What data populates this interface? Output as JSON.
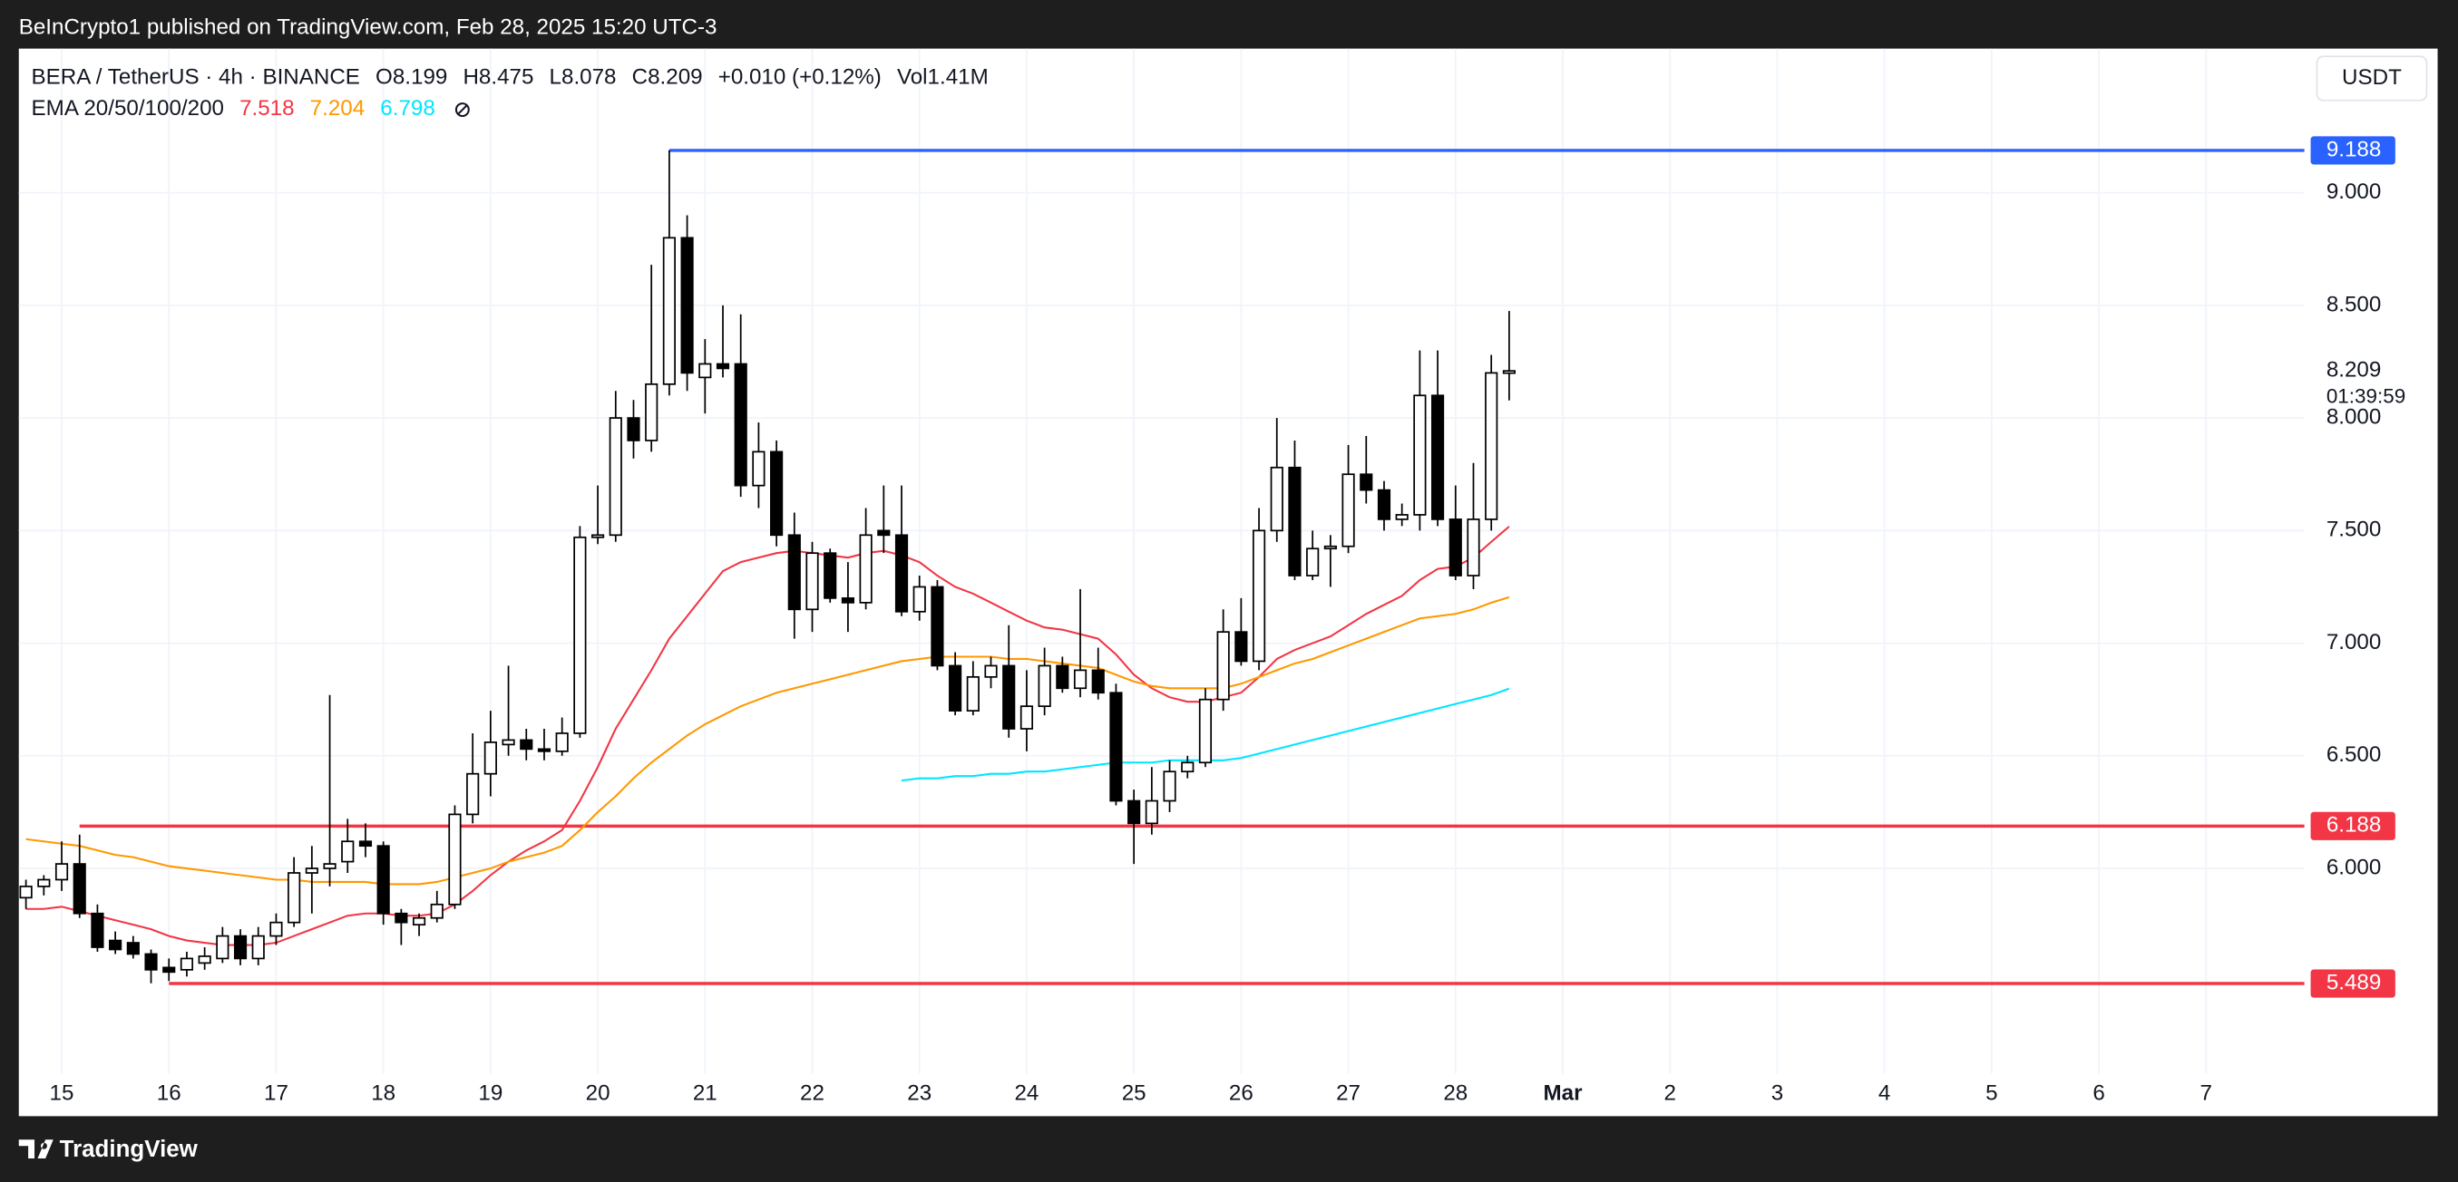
{
  "header": {
    "publisher": "BeInCrypto1 published on TradingView.com, Feb 28, 2025 15:20 UTC-3"
  },
  "footer": {
    "brand": "TradingView"
  },
  "chart_data": {
    "type": "candlestick",
    "symbol": "BERA / TetherUS · 4h · BINANCE",
    "ohlc_prefixes": [
      "O",
      "H",
      "L",
      "C"
    ],
    "change": "+0.010 (+0.12%)",
    "volume": "Vol1.41M",
    "indicator": "EMA 20/50/100/200",
    "currency": "USDT",
    "countdown": "01:39:59",
    "up_color": "#ffffff",
    "down_color": "#000000",
    "grid": true,
    "open": [
      5.87,
      5.92,
      5.95,
      6.02,
      5.8,
      5.68,
      5.67,
      5.62,
      5.56,
      5.55,
      5.58,
      5.6,
      5.7,
      5.6,
      5.7,
      5.76,
      5.98,
      6.0,
      6.03,
      6.12,
      6.1,
      5.8,
      5.75,
      5.78,
      5.84,
      6.24,
      6.42,
      6.55,
      6.57,
      6.53,
      6.52,
      6.6,
      7.47,
      7.48,
      8.0,
      7.9,
      8.15,
      8.8,
      8.18,
      8.24,
      8.24,
      7.7,
      7.85,
      7.48,
      7.15,
      7.4,
      7.2,
      7.18,
      7.5,
      7.48,
      7.14,
      7.25,
      6.9,
      6.7,
      6.85,
      6.9,
      6.62,
      6.72,
      6.9,
      6.8,
      6.88,
      6.78,
      6.3,
      6.2,
      6.3,
      6.43,
      6.47,
      6.75,
      7.05,
      6.92,
      7.5,
      7.78,
      7.3,
      7.42,
      7.43,
      7.75,
      7.68,
      7.55,
      7.57,
      8.1,
      7.55,
      7.3,
      7.55,
      8.199
    ],
    "high": [
      5.95,
      5.97,
      6.12,
      6.15,
      5.84,
      5.72,
      5.7,
      5.64,
      5.6,
      5.63,
      5.65,
      5.74,
      5.73,
      5.74,
      5.8,
      6.05,
      6.1,
      6.77,
      6.22,
      6.2,
      6.12,
      5.82,
      5.8,
      5.9,
      6.28,
      6.6,
      6.7,
      6.9,
      6.62,
      6.62,
      6.67,
      7.52,
      7.7,
      8.12,
      8.08,
      8.68,
      9.188,
      8.9,
      8.35,
      8.5,
      8.46,
      7.98,
      7.9,
      7.58,
      7.45,
      7.42,
      7.36,
      7.6,
      7.7,
      7.7,
      7.3,
      7.28,
      6.96,
      6.92,
      6.94,
      7.08,
      6.88,
      6.98,
      6.94,
      7.24,
      6.98,
      6.82,
      6.35,
      6.45,
      6.48,
      6.5,
      6.8,
      7.15,
      7.2,
      7.6,
      8.0,
      7.9,
      7.5,
      7.48,
      7.88,
      7.92,
      7.72,
      7.62,
      8.3,
      8.3,
      7.7,
      7.8,
      8.28,
      8.475
    ],
    "low": [
      5.82,
      5.88,
      5.9,
      5.78,
      5.63,
      5.62,
      5.6,
      5.49,
      5.5,
      5.52,
      5.55,
      5.58,
      5.57,
      5.57,
      5.66,
      5.74,
      5.8,
      5.92,
      5.98,
      6.05,
      5.75,
      5.66,
      5.7,
      5.76,
      5.82,
      6.2,
      6.32,
      6.5,
      6.48,
      6.48,
      6.5,
      6.58,
      7.44,
      7.45,
      7.82,
      7.85,
      8.1,
      8.12,
      8.02,
      8.18,
      7.65,
      7.6,
      7.43,
      7.02,
      7.05,
      7.18,
      7.05,
      7.15,
      7.4,
      7.12,
      7.1,
      6.88,
      6.68,
      6.68,
      6.8,
      6.58,
      6.52,
      6.68,
      6.78,
      6.76,
      6.75,
      6.28,
      6.02,
      6.15,
      6.25,
      6.4,
      6.45,
      6.7,
      6.9,
      6.88,
      7.45,
      7.28,
      7.28,
      7.25,
      7.4,
      7.62,
      7.5,
      7.52,
      7.5,
      7.52,
      7.28,
      7.24,
      7.5,
      8.078
    ],
    "close": [
      5.92,
      5.95,
      6.02,
      5.8,
      5.65,
      5.64,
      5.62,
      5.55,
      5.54,
      5.6,
      5.61,
      5.7,
      5.6,
      5.7,
      5.76,
      5.98,
      6.0,
      6.02,
      6.12,
      6.1,
      5.8,
      5.76,
      5.78,
      5.84,
      6.24,
      6.42,
      6.56,
      6.57,
      6.53,
      6.52,
      6.6,
      7.47,
      7.48,
      8.0,
      7.9,
      8.15,
      8.8,
      8.2,
      8.24,
      8.22,
      7.7,
      7.85,
      7.48,
      7.15,
      7.4,
      7.2,
      7.18,
      7.48,
      7.48,
      7.14,
      7.25,
      6.9,
      6.7,
      6.85,
      6.9,
      6.62,
      6.72,
      6.9,
      6.8,
      6.88,
      6.78,
      6.3,
      6.2,
      6.3,
      6.43,
      6.47,
      6.75,
      7.05,
      6.92,
      7.5,
      7.78,
      7.3,
      7.42,
      7.43,
      7.75,
      7.68,
      7.55,
      7.57,
      8.1,
      7.55,
      7.3,
      7.55,
      8.2,
      8.209
    ],
    "ema": [
      {
        "color": "#f23645",
        "values": [
          5.82,
          5.82,
          5.83,
          5.81,
          5.79,
          5.77,
          5.75,
          5.73,
          5.7,
          5.68,
          5.67,
          5.66,
          5.66,
          5.66,
          5.67,
          5.7,
          5.73,
          5.76,
          5.79,
          5.8,
          5.8,
          5.79,
          5.79,
          5.8,
          5.84,
          5.9,
          5.97,
          6.03,
          6.08,
          6.12,
          6.17,
          6.3,
          6.45,
          6.62,
          6.75,
          6.88,
          7.02,
          7.12,
          7.22,
          7.32,
          7.36,
          7.38,
          7.4,
          7.41,
          7.4,
          7.39,
          7.38,
          7.4,
          7.41,
          7.39,
          7.36,
          7.3,
          7.25,
          7.22,
          7.18,
          7.14,
          7.1,
          7.07,
          7.06,
          7.04,
          7.02,
          6.95,
          6.86,
          6.8,
          6.76,
          6.74,
          6.74,
          6.76,
          6.78,
          6.85,
          6.93,
          6.97,
          7.0,
          7.03,
          7.08,
          7.13,
          7.17,
          7.21,
          7.28,
          7.33,
          7.34,
          7.38,
          7.45,
          7.518
        ]
      },
      {
        "color": "#ff9800",
        "values": [
          6.13,
          6.12,
          6.11,
          6.1,
          6.08,
          6.06,
          6.05,
          6.03,
          6.01,
          6.0,
          5.99,
          5.98,
          5.97,
          5.96,
          5.95,
          5.95,
          5.94,
          5.94,
          5.94,
          5.94,
          5.93,
          5.93,
          5.93,
          5.94,
          5.96,
          5.98,
          6.0,
          6.03,
          6.05,
          6.07,
          6.1,
          6.17,
          6.25,
          6.32,
          6.4,
          6.47,
          6.53,
          6.59,
          6.64,
          6.68,
          6.72,
          6.75,
          6.78,
          6.8,
          6.82,
          6.84,
          6.86,
          6.88,
          6.9,
          6.92,
          6.93,
          6.94,
          6.94,
          6.94,
          6.94,
          6.93,
          6.93,
          6.92,
          6.91,
          6.9,
          6.89,
          6.86,
          6.83,
          6.81,
          6.8,
          6.8,
          6.8,
          6.8,
          6.82,
          6.85,
          6.88,
          6.91,
          6.93,
          6.96,
          6.99,
          7.02,
          7.05,
          7.08,
          7.11,
          7.12,
          7.13,
          7.15,
          7.18,
          7.204
        ]
      },
      {
        "color": "#00e5ff",
        "values": [
          null,
          null,
          null,
          null,
          null,
          null,
          null,
          null,
          null,
          null,
          null,
          null,
          null,
          null,
          null,
          null,
          null,
          null,
          null,
          null,
          null,
          null,
          null,
          null,
          null,
          null,
          null,
          null,
          null,
          null,
          null,
          null,
          null,
          null,
          null,
          null,
          null,
          null,
          null,
          null,
          null,
          null,
          null,
          null,
          null,
          null,
          null,
          null,
          null,
          6.39,
          6.4,
          6.4,
          6.41,
          6.41,
          6.42,
          6.42,
          6.43,
          6.43,
          6.44,
          6.45,
          6.46,
          6.47,
          6.47,
          6.47,
          6.48,
          6.48,
          6.48,
          6.48,
          6.49,
          6.51,
          6.53,
          6.55,
          6.57,
          6.59,
          6.61,
          6.63,
          6.65,
          6.67,
          6.69,
          6.71,
          6.73,
          6.75,
          6.77,
          6.798
        ]
      }
    ],
    "levels": [
      {
        "value": 9.188,
        "start": 36,
        "color": "#2962ff"
      },
      {
        "value": 6.188,
        "start": 3,
        "color": "#f23645"
      },
      {
        "value": 5.489,
        "start": 8,
        "color": "#f23645"
      }
    ],
    "ylim": [
      4.9,
      9.64
    ],
    "yticks": [
      {
        "value": 6,
        "label": "6.000"
      },
      {
        "value": 6.5,
        "label": "6.500"
      },
      {
        "value": 7,
        "label": "7.000"
      },
      {
        "value": 7.5,
        "label": "7.500"
      },
      {
        "value": 8,
        "label": "8.000"
      },
      {
        "value": 8.5,
        "label": "8.500"
      },
      {
        "value": 9,
        "label": "9.000"
      }
    ],
    "xlim": [
      -0.4,
      127.5
    ],
    "xticks": [
      {
        "value": 2,
        "label": "15"
      },
      {
        "value": 8,
        "label": "16"
      },
      {
        "value": 14,
        "label": "17"
      },
      {
        "value": 20,
        "label": "18"
      },
      {
        "value": 26,
        "label": "19"
      },
      {
        "value": 32,
        "label": "20"
      },
      {
        "value": 38,
        "label": "21"
      },
      {
        "value": 44,
        "label": "22"
      },
      {
        "value": 50,
        "label": "23"
      },
      {
        "value": 56,
        "label": "24"
      },
      {
        "value": 62,
        "label": "25"
      },
      {
        "value": 68,
        "label": "26"
      },
      {
        "value": 74,
        "label": "27"
      },
      {
        "value": 80,
        "label": "28"
      },
      {
        "value": 86,
        "label": "Mar"
      },
      {
        "value": 92,
        "label": "2"
      },
      {
        "value": 98,
        "label": "3"
      },
      {
        "value": 104,
        "label": "4"
      },
      {
        "value": 110,
        "label": "5"
      },
      {
        "value": 116,
        "label": "6"
      },
      {
        "value": 122,
        "label": "7"
      }
    ]
  }
}
